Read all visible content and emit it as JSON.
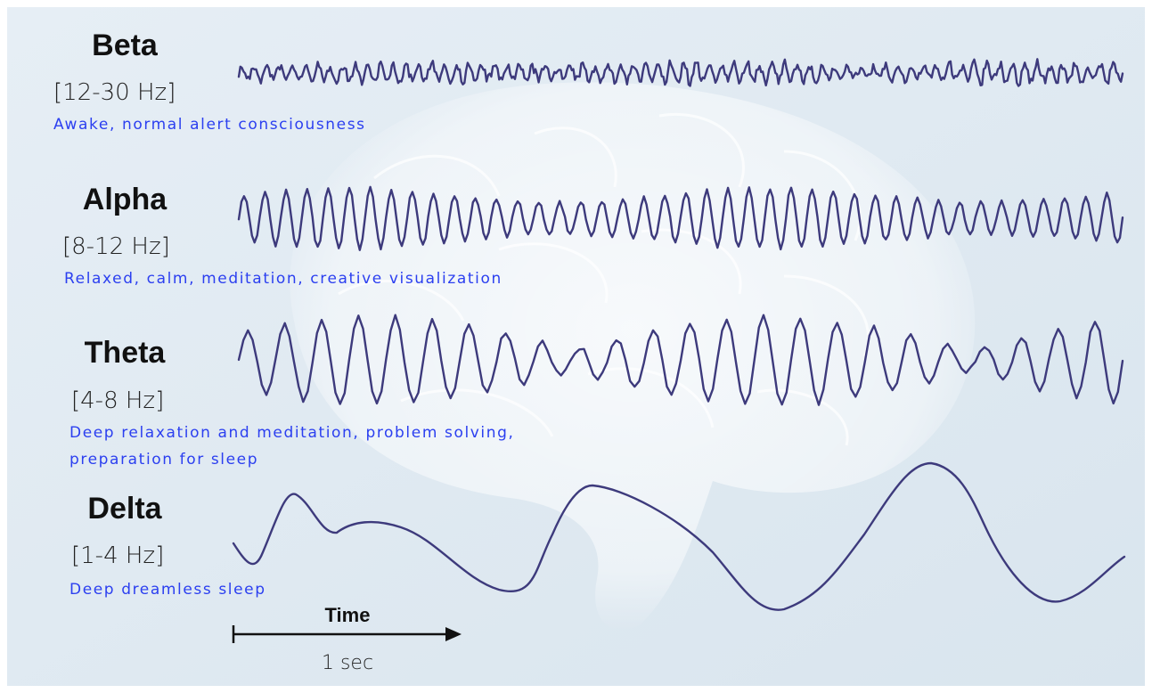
{
  "bands": [
    {
      "name": "Beta",
      "range": "[12-30 Hz]",
      "description": [
        "Awake, normal alert consciousness"
      ]
    },
    {
      "name": "Alpha",
      "range": "[8-12 Hz]",
      "description": [
        "Relaxed, calm, meditation, creative visualization"
      ]
    },
    {
      "name": "Theta",
      "range": "[4-8 Hz]",
      "description": [
        "Deep relaxation and meditation, problem solving,",
        "preparation for sleep"
      ]
    },
    {
      "name": "Delta",
      "range": "[1-4 Hz]",
      "description": [
        "Deep dreamless sleep"
      ]
    }
  ],
  "time_axis": {
    "label": "Time",
    "duration": "1 sec"
  }
}
